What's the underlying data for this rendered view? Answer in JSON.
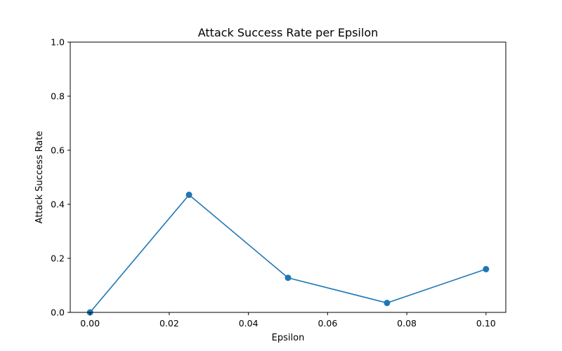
{
  "chart_data": {
    "type": "line",
    "title": "Attack Success Rate per Epsilon",
    "xlabel": "Epsilon",
    "ylabel": "Attack Success Rate",
    "xlim": [
      -0.005,
      0.105
    ],
    "ylim": [
      0.0,
      1.0
    ],
    "x_ticks": [
      0.0,
      0.02,
      0.04,
      0.06,
      0.08,
      0.1
    ],
    "x_tick_labels": [
      "0.00",
      "0.02",
      "0.04",
      "0.06",
      "0.08",
      "0.10"
    ],
    "y_ticks": [
      0.0,
      0.2,
      0.4,
      0.6,
      0.8,
      1.0
    ],
    "y_tick_labels": [
      "0.0",
      "0.2",
      "0.4",
      "0.6",
      "0.8",
      "1.0"
    ],
    "grid": false,
    "series": [
      {
        "color": "#1f77b4",
        "marker": "circle",
        "x": [
          0.0,
          0.025,
          0.05,
          0.075,
          0.1
        ],
        "y": [
          0.0,
          0.435,
          0.128,
          0.035,
          0.16
        ]
      }
    ]
  }
}
